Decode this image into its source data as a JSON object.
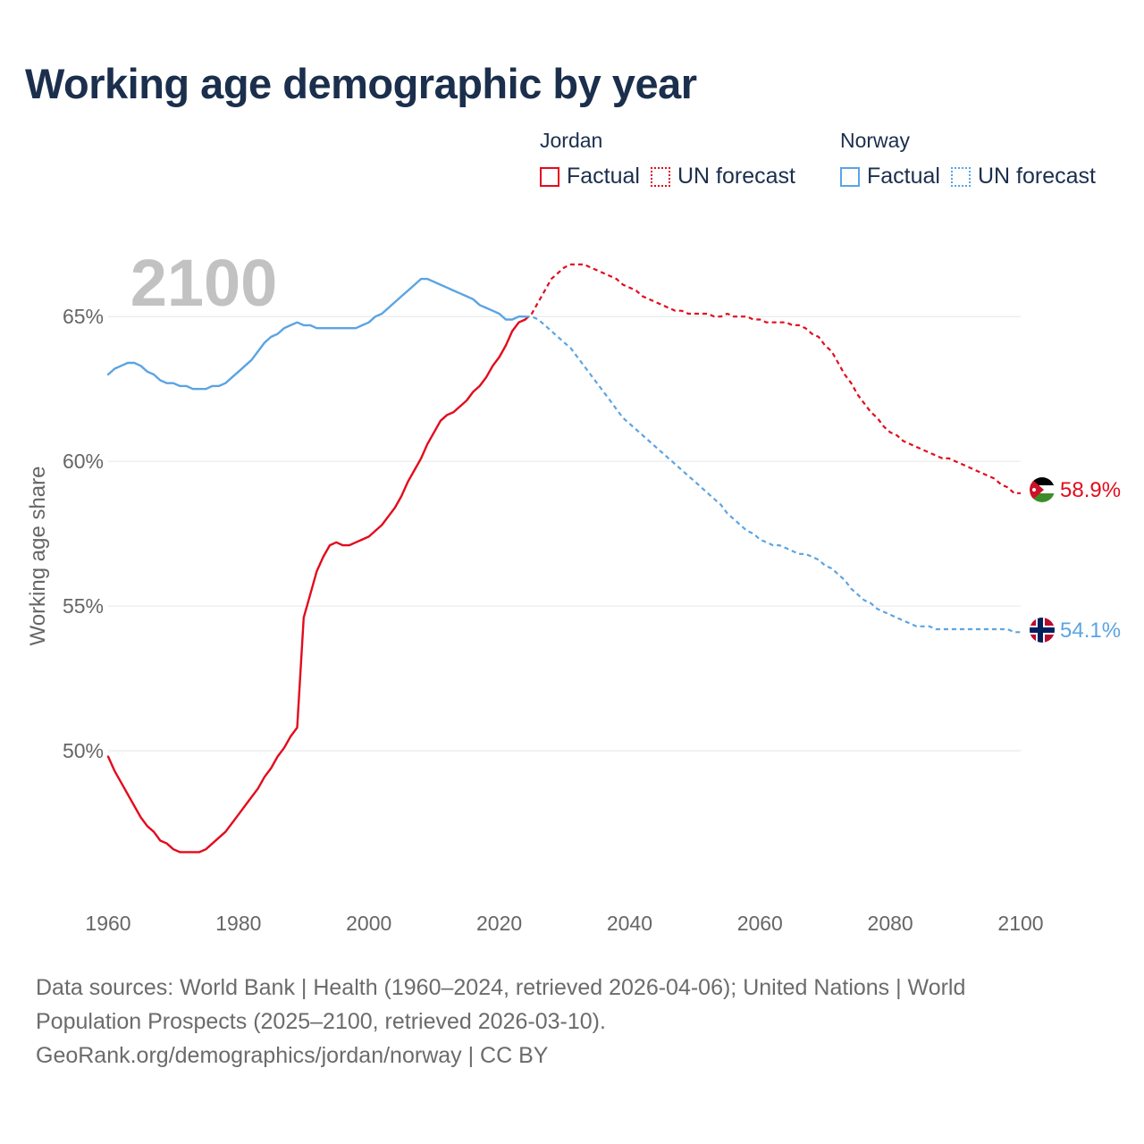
{
  "title": "Working age demographic by year",
  "year_label": "2100",
  "legend": [
    {
      "country": "Jordan",
      "factual": "Factual",
      "forecast": "UN forecast",
      "color": "#e30b1c"
    },
    {
      "country": "Norway",
      "factual": "Factual",
      "forecast": "UN forecast",
      "color": "#5ba4e2"
    }
  ],
  "source": {
    "line1": "Data sources: World Bank | Health (1960–2024, retrieved 2026-04-06); United Nations | World",
    "line2": "Population Prospects (2025–2100, retrieved 2026-03-10).",
    "line3": "GeoRank.org/demographics/jordan/norway | CC BY"
  },
  "chart_data": {
    "type": "line",
    "title": "Working age demographic by year",
    "xlabel": "",
    "ylabel": "Working age share",
    "xlim": [
      1960,
      2100
    ],
    "ylim": [
      45,
      67.6
    ],
    "x_ticks": [
      1960,
      1980,
      2000,
      2020,
      2040,
      2060,
      2080,
      2100
    ],
    "x_tick_labels": [
      "1960",
      "1980",
      "2000",
      "2020",
      "2040",
      "2060",
      "2080",
      "2100"
    ],
    "y_ticks": [
      50,
      55,
      60,
      65
    ],
    "y_tick_labels": [
      "50%",
      "55%",
      "60%",
      "65%"
    ],
    "grid": true,
    "series": [
      {
        "name": "Jordan",
        "color": "#e30b1c",
        "end_label": "58.9%",
        "factual": {
          "x": [
            1960,
            1961,
            1962,
            1963,
            1964,
            1965,
            1966,
            1967,
            1968,
            1969,
            1970,
            1971,
            1972,
            1973,
            1974,
            1975,
            1976,
            1977,
            1978,
            1979,
            1980,
            1981,
            1982,
            1983,
            1984,
            1985,
            1986,
            1987,
            1988,
            1989,
            1990,
            1991,
            1992,
            1993,
            1994,
            1995,
            1996,
            1997,
            1998,
            1999,
            2000,
            2001,
            2002,
            2003,
            2004,
            2005,
            2006,
            2007,
            2008,
            2009,
            2010,
            2011,
            2012,
            2013,
            2014,
            2015,
            2016,
            2017,
            2018,
            2019,
            2020,
            2021,
            2022,
            2023,
            2024
          ],
          "y": [
            49.8,
            49.3,
            48.9,
            48.5,
            48.1,
            47.7,
            47.4,
            47.2,
            46.9,
            46.8,
            46.6,
            46.5,
            46.5,
            46.5,
            46.5,
            46.6,
            46.8,
            47.0,
            47.2,
            47.5,
            47.8,
            48.1,
            48.4,
            48.7,
            49.1,
            49.4,
            49.8,
            50.1,
            50.5,
            50.8,
            54.6,
            55.4,
            56.2,
            56.7,
            57.1,
            57.2,
            57.1,
            57.1,
            57.2,
            57.3,
            57.4,
            57.6,
            57.8,
            58.1,
            58.4,
            58.8,
            59.3,
            59.7,
            60.1,
            60.6,
            61.0,
            61.4,
            61.6,
            61.7,
            61.9,
            62.1,
            62.4,
            62.6,
            62.9,
            63.3,
            63.6,
            64.0,
            64.5,
            64.8,
            64.9
          ]
        },
        "forecast": {
          "x": [
            2024,
            2025,
            2026,
            2027,
            2028,
            2029,
            2030,
            2031,
            2032,
            2033,
            2034,
            2035,
            2036,
            2037,
            2038,
            2039,
            2040,
            2041,
            2042,
            2043,
            2044,
            2045,
            2046,
            2047,
            2048,
            2049,
            2050,
            2051,
            2052,
            2053,
            2054,
            2055,
            2056,
            2057,
            2058,
            2059,
            2060,
            2061,
            2062,
            2063,
            2064,
            2065,
            2066,
            2067,
            2068,
            2069,
            2070,
            2071,
            2072,
            2073,
            2074,
            2075,
            2076,
            2077,
            2078,
            2079,
            2080,
            2081,
            2082,
            2083,
            2084,
            2085,
            2086,
            2087,
            2088,
            2089,
            2090,
            2091,
            2092,
            2093,
            2094,
            2095,
            2096,
            2097,
            2098,
            2099,
            2100
          ],
          "y": [
            64.9,
            65.1,
            65.5,
            65.9,
            66.3,
            66.5,
            66.7,
            66.8,
            66.8,
            66.8,
            66.7,
            66.6,
            66.5,
            66.4,
            66.3,
            66.1,
            66.0,
            65.9,
            65.7,
            65.6,
            65.5,
            65.4,
            65.3,
            65.2,
            65.2,
            65.1,
            65.1,
            65.1,
            65.1,
            65.0,
            65.0,
            65.1,
            65.0,
            65.0,
            65.0,
            64.9,
            64.9,
            64.8,
            64.8,
            64.8,
            64.8,
            64.7,
            64.7,
            64.6,
            64.4,
            64.3,
            64.0,
            63.8,
            63.4,
            63.0,
            62.7,
            62.3,
            62.0,
            61.7,
            61.5,
            61.2,
            61.0,
            60.9,
            60.7,
            60.6,
            60.5,
            60.4,
            60.3,
            60.2,
            60.1,
            60.1,
            60.0,
            59.9,
            59.8,
            59.7,
            59.6,
            59.5,
            59.4,
            59.2,
            59.1,
            58.9,
            58.9
          ]
        }
      },
      {
        "name": "Norway",
        "color": "#5ba4e2",
        "end_label": "54.1%",
        "factual": {
          "x": [
            1960,
            1961,
            1962,
            1963,
            1964,
            1965,
            1966,
            1967,
            1968,
            1969,
            1970,
            1971,
            1972,
            1973,
            1974,
            1975,
            1976,
            1977,
            1978,
            1979,
            1980,
            1981,
            1982,
            1983,
            1984,
            1985,
            1986,
            1987,
            1988,
            1989,
            1990,
            1991,
            1992,
            1993,
            1994,
            1995,
            1996,
            1997,
            1998,
            1999,
            2000,
            2001,
            2002,
            2003,
            2004,
            2005,
            2006,
            2007,
            2008,
            2009,
            2010,
            2011,
            2012,
            2013,
            2014,
            2015,
            2016,
            2017,
            2018,
            2019,
            2020,
            2021,
            2022,
            2023,
            2024
          ],
          "y": [
            63.0,
            63.2,
            63.3,
            63.4,
            63.4,
            63.3,
            63.1,
            63.0,
            62.8,
            62.7,
            62.7,
            62.6,
            62.6,
            62.5,
            62.5,
            62.5,
            62.6,
            62.6,
            62.7,
            62.9,
            63.1,
            63.3,
            63.5,
            63.8,
            64.1,
            64.3,
            64.4,
            64.6,
            64.7,
            64.8,
            64.7,
            64.7,
            64.6,
            64.6,
            64.6,
            64.6,
            64.6,
            64.6,
            64.6,
            64.7,
            64.8,
            65.0,
            65.1,
            65.3,
            65.5,
            65.7,
            65.9,
            66.1,
            66.3,
            66.3,
            66.2,
            66.1,
            66.0,
            65.9,
            65.8,
            65.7,
            65.6,
            65.4,
            65.3,
            65.2,
            65.1,
            64.9,
            64.9,
            65.0,
            65.0
          ]
        },
        "forecast": {
          "x": [
            2024,
            2025,
            2026,
            2027,
            2028,
            2029,
            2030,
            2031,
            2032,
            2033,
            2034,
            2035,
            2036,
            2037,
            2038,
            2039,
            2040,
            2041,
            2042,
            2043,
            2044,
            2045,
            2046,
            2047,
            2048,
            2049,
            2050,
            2051,
            2052,
            2053,
            2054,
            2055,
            2056,
            2057,
            2058,
            2059,
            2060,
            2061,
            2062,
            2063,
            2064,
            2065,
            2066,
            2067,
            2068,
            2069,
            2070,
            2071,
            2072,
            2073,
            2074,
            2075,
            2076,
            2077,
            2078,
            2079,
            2080,
            2081,
            2082,
            2083,
            2084,
            2085,
            2086,
            2087,
            2088,
            2089,
            2090,
            2091,
            2092,
            2093,
            2094,
            2095,
            2096,
            2097,
            2098,
            2099,
            2100
          ],
          "y": [
            65.0,
            65.0,
            64.9,
            64.7,
            64.5,
            64.3,
            64.1,
            63.9,
            63.6,
            63.3,
            63.0,
            62.7,
            62.4,
            62.1,
            61.8,
            61.5,
            61.3,
            61.1,
            60.9,
            60.7,
            60.5,
            60.3,
            60.1,
            59.9,
            59.7,
            59.5,
            59.3,
            59.1,
            58.9,
            58.7,
            58.5,
            58.2,
            58.0,
            57.8,
            57.6,
            57.5,
            57.3,
            57.2,
            57.1,
            57.1,
            57.0,
            56.9,
            56.8,
            56.8,
            56.7,
            56.6,
            56.4,
            56.3,
            56.1,
            55.9,
            55.6,
            55.4,
            55.2,
            55.1,
            54.9,
            54.8,
            54.7,
            54.6,
            54.5,
            54.4,
            54.3,
            54.3,
            54.3,
            54.2,
            54.2,
            54.2,
            54.2,
            54.2,
            54.2,
            54.2,
            54.2,
            54.2,
            54.2,
            54.2,
            54.2,
            54.1,
            54.1
          ]
        }
      }
    ]
  }
}
